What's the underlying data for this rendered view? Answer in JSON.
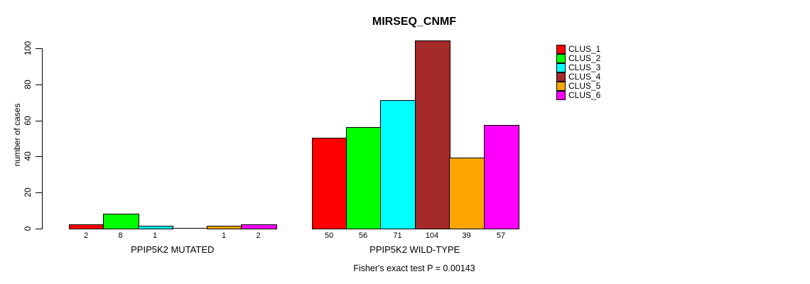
{
  "chart_data": {
    "type": "bar",
    "title": "MIRSEQ_CNMF",
    "ylabel": "number of cases",
    "xlabel": "",
    "ylim": [
      0,
      100
    ],
    "yticks": [
      0,
      20,
      40,
      60,
      80,
      100
    ],
    "grid": false,
    "legend_position": "right",
    "series": [
      {
        "name": "CLUS_1",
        "color": "#ff0000"
      },
      {
        "name": "CLUS_2",
        "color": "#00ff00"
      },
      {
        "name": "CLUS_3",
        "color": "#00ffff"
      },
      {
        "name": "CLUS_4",
        "color": "#a52a2a"
      },
      {
        "name": "CLUS_5",
        "color": "#ffa500"
      },
      {
        "name": "CLUS_6",
        "color": "#ff00ff"
      }
    ],
    "groups": [
      {
        "label": "PPIP5K2 MUTATED",
        "values": [
          2,
          8,
          1,
          0,
          1,
          2
        ],
        "bar_labels": [
          "2",
          "8",
          "1",
          "",
          "1",
          "2"
        ]
      },
      {
        "label": "PPIP5K2 WILD-TYPE",
        "values": [
          50,
          56,
          71,
          104,
          39,
          57
        ],
        "bar_labels": [
          "50",
          "56",
          "71",
          "104",
          "39",
          "57"
        ]
      }
    ],
    "annotation": "Fisher's exact test P = 0.00143"
  }
}
